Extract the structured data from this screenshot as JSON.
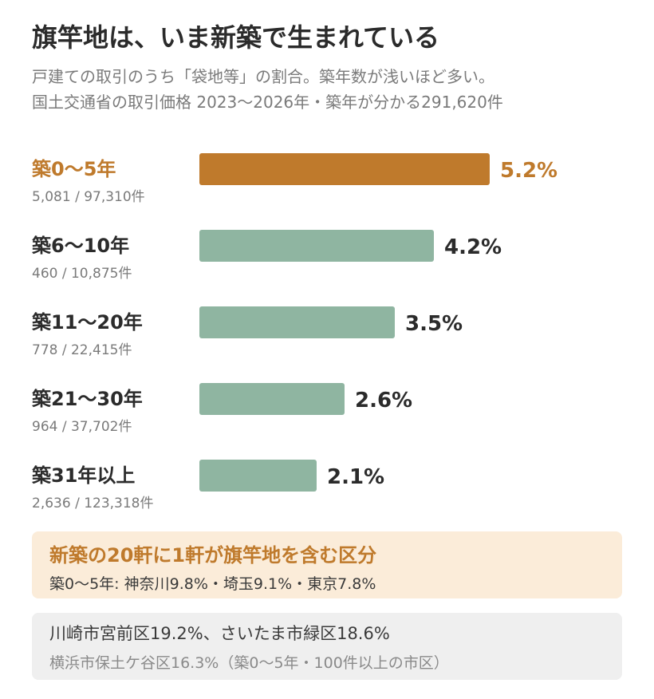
{
  "header": {
    "title": "旗竿地は、いま新築で生まれている",
    "subtitle_1": "戸建ての取引のうち「袋地等」の割合。築年数が浅いほど多い。",
    "subtitle_2": "国土交通省の取引価格 2023〜2026年・築年が分かる291,620件"
  },
  "chart_data": {
    "type": "bar",
    "orientation": "horizontal",
    "categories": [
      "築0〜5年",
      "築6〜10年",
      "築11〜20年",
      "築21〜30年",
      "築31年以上"
    ],
    "category_counts": [
      "5,081 / 97,310件",
      "460 / 10,875件",
      "778 / 22,415件",
      "964 / 37,702件",
      "2,636 / 123,318件"
    ],
    "values": [
      5.2,
      4.2,
      3.5,
      2.6,
      2.1
    ],
    "value_labels": [
      "5.2%",
      "4.2%",
      "3.5%",
      "2.6%",
      "2.1%"
    ],
    "highlight_index": 0,
    "xlim": [
      0,
      5.2
    ],
    "grid": false,
    "colors": {
      "highlight": "#bf7a2c",
      "default": "#8fb5a1",
      "text": "#2b2b2b"
    }
  },
  "highlight_box": {
    "heading": "新築の20軒に1軒が旗竿地を含む区分",
    "body": "築0〜5年: 神奈川9.8%・埼玉9.1%・東京7.8%"
  },
  "note_box": {
    "line_1": "川崎市宮前区19.2%、さいたま市緑区18.6%",
    "line_2": "横浜市保土ケ谷区16.3%（築0〜5年・100件以上の市区）"
  }
}
